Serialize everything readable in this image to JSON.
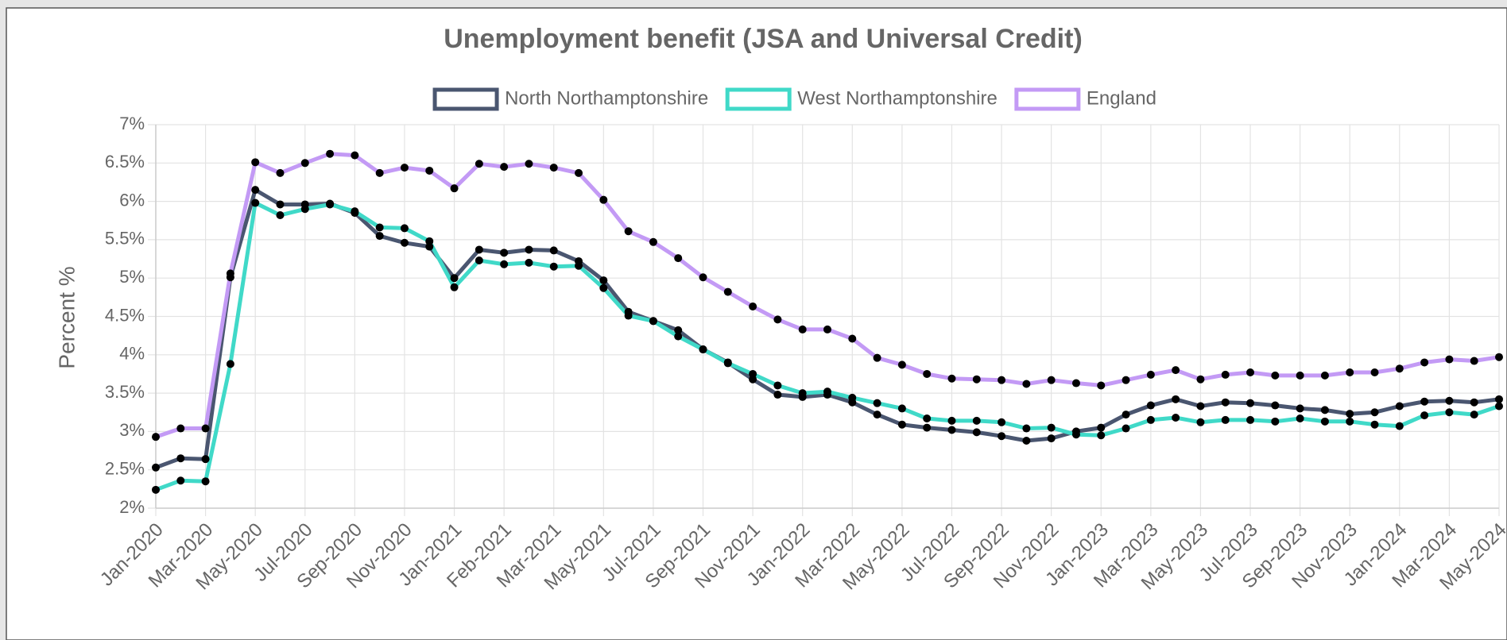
{
  "chart_data": {
    "type": "line",
    "title": "Unemployment benefit (JSA and Universal Credit)",
    "y_label": "Percent %",
    "categories": [
      "Jan-2020",
      null,
      "Mar-2020",
      null,
      "May-2020",
      null,
      "Jul-2020",
      null,
      "Sep-2020",
      null,
      "Nov-2020",
      null,
      "Jan-2021",
      null,
      "Feb-2021",
      null,
      "Mar-2021",
      null,
      "May-2021",
      null,
      "Jul-2021",
      null,
      "Sep-2021",
      null,
      "Nov-2021",
      null,
      "Jan-2022",
      null,
      "Mar-2022",
      null,
      "May-2022",
      null,
      "Jul-2022",
      null,
      "Sep-2022",
      null,
      "Nov-2022",
      null,
      "Jan-2023",
      null,
      "Mar-2023",
      null,
      "May-2023",
      null,
      "Jul-2023",
      null,
      "Sep-2023",
      null,
      "Nov-2023",
      null,
      "Jan-2024",
      null,
      "Mar-2024",
      null,
      "May-2024"
    ],
    "series": [
      {
        "name": "North Northamptonshire",
        "color": "#4a5670",
        "values": [
          2.53,
          2.65,
          2.64,
          5.01,
          6.15,
          5.96,
          5.96,
          5.97,
          5.85,
          5.55,
          5.46,
          5.41,
          5.0,
          5.37,
          5.33,
          5.37,
          5.36,
          5.22,
          4.97,
          4.56,
          4.44,
          4.32,
          4.07,
          3.9,
          3.68,
          3.48,
          3.45,
          3.48,
          3.38,
          3.22,
          3.09,
          3.05,
          3.02,
          2.99,
          2.94,
          2.88,
          2.91,
          3.0,
          3.05,
          3.22,
          3.34,
          3.42,
          3.33,
          3.38,
          3.37,
          3.34,
          3.3,
          3.28,
          3.23,
          3.25,
          3.33,
          3.39,
          3.4,
          3.38,
          3.42
        ]
      },
      {
        "name": "West Northamptonshire",
        "color": "#40d9c8",
        "values": [
          2.24,
          2.36,
          2.35,
          3.88,
          5.98,
          5.82,
          5.9,
          5.96,
          5.87,
          5.66,
          5.65,
          5.48,
          4.88,
          5.23,
          5.18,
          5.2,
          5.15,
          5.16,
          4.87,
          4.51,
          4.44,
          4.24,
          4.07,
          3.89,
          3.75,
          3.6,
          3.5,
          3.52,
          3.44,
          3.37,
          3.3,
          3.17,
          3.14,
          3.14,
          3.12,
          3.04,
          3.05,
          2.96,
          2.95,
          3.04,
          3.15,
          3.18,
          3.12,
          3.15,
          3.15,
          3.13,
          3.17,
          3.13,
          3.13,
          3.09,
          3.07,
          3.21,
          3.25,
          3.22,
          3.33
        ]
      },
      {
        "name": "England",
        "color": "#c39af5",
        "values": [
          2.93,
          3.04,
          3.04,
          5.06,
          6.51,
          6.37,
          6.5,
          6.62,
          6.6,
          6.37,
          6.44,
          6.4,
          6.17,
          6.49,
          6.45,
          6.49,
          6.44,
          6.37,
          6.02,
          5.61,
          5.47,
          5.26,
          5.01,
          4.82,
          4.63,
          4.46,
          4.33,
          4.33,
          4.21,
          3.96,
          3.87,
          3.75,
          3.69,
          3.68,
          3.67,
          3.62,
          3.67,
          3.63,
          3.6,
          3.67,
          3.74,
          3.8,
          3.68,
          3.74,
          3.77,
          3.73,
          3.73,
          3.73,
          3.77,
          3.77,
          3.82,
          3.9,
          3.94,
          3.92,
          3.97
        ]
      }
    ],
    "ylim": [
      2,
      7
    ],
    "yticks": [
      {
        "value": 2,
        "label": "2%"
      },
      {
        "value": 2.5,
        "label": "2.5%"
      },
      {
        "value": 3,
        "label": "3%"
      },
      {
        "value": 3.5,
        "label": "3.5%"
      },
      {
        "value": 4,
        "label": "4%"
      },
      {
        "value": 4.5,
        "label": "4.5%"
      },
      {
        "value": 5,
        "label": "5%"
      },
      {
        "value": 5.5,
        "label": "5.5%"
      },
      {
        "value": 6,
        "label": "6%"
      },
      {
        "value": 6.5,
        "label": "6.5%"
      },
      {
        "value": 7,
        "label": "7%"
      }
    ],
    "grid": true,
    "legend": "top"
  }
}
